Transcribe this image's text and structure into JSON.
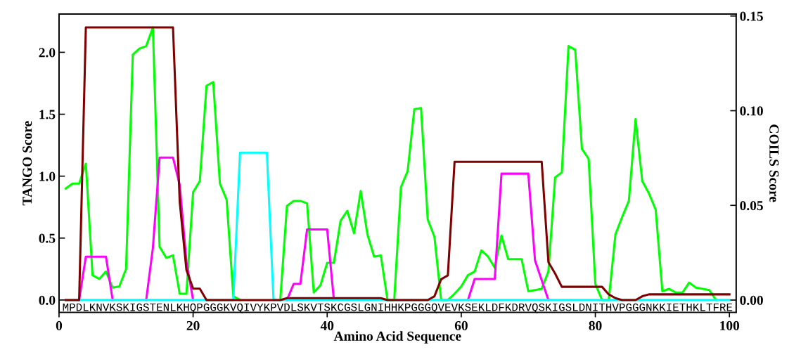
{
  "chart_data": {
    "type": "line",
    "xlabel": "Amino Acid Sequence",
    "ylabel": "TANGO Score",
    "y2label": "COILS Score",
    "annotations": [
      "MPDLKNVKSKIGSTENLKHQPGGGKVQIVYKPVDLSKVTSKCGSLGNIHHKPGGGQVEVKSEKLDFKDRVQSKIGSLDNITHVPGGGNKKIETHKLTFRE"
    ],
    "x": [
      1,
      2,
      3,
      4,
      5,
      6,
      7,
      8,
      9,
      10,
      11,
      12,
      13,
      14,
      15,
      16,
      17,
      18,
      19,
      20,
      21,
      22,
      23,
      24,
      25,
      26,
      27,
      28,
      29,
      30,
      31,
      32,
      33,
      34,
      35,
      36,
      37,
      38,
      39,
      40,
      41,
      42,
      43,
      44,
      45,
      46,
      47,
      48,
      49,
      50,
      51,
      52,
      53,
      54,
      55,
      56,
      57,
      58,
      59,
      60,
      61,
      62,
      63,
      64,
      65,
      66,
      67,
      68,
      69,
      70,
      71,
      72,
      73,
      74,
      75,
      76,
      77,
      78,
      79,
      80,
      81,
      82,
      83,
      84,
      85,
      86,
      87,
      88,
      89,
      90,
      91,
      92,
      93,
      94,
      95,
      96,
      97,
      98,
      99,
      100
    ],
    "series": [
      {
        "color": "#00ff00",
        "values": [
          0.9,
          0.94,
          0.94,
          1.1,
          0.2,
          0.17,
          0.23,
          0.1,
          0.11,
          0.25,
          1.98,
          2.03,
          2.05,
          2.2,
          0.43,
          0.34,
          0.36,
          0.05,
          0.05,
          0.87,
          0.96,
          1.73,
          1.76,
          0.94,
          0.81,
          0.03,
          0,
          null,
          null,
          null,
          null,
          null,
          0,
          0.76,
          0.8,
          0.8,
          0.78,
          0.06,
          0.12,
          0.3,
          0.3,
          0.64,
          0.72,
          0.54,
          0.88,
          0.53,
          0.35,
          0.36,
          0,
          0,
          0.91,
          1.04,
          1.54,
          1.55,
          0.65,
          0.51,
          0,
          0,
          0.05,
          0.11,
          0.2,
          0.23,
          0.4,
          0.35,
          0.26,
          0.52,
          0.33,
          0.33,
          0.33,
          0.07,
          0.08,
          0.09,
          0.23,
          0.99,
          1.03,
          2.05,
          2.02,
          1.22,
          1.14,
          0.13,
          0,
          0,
          0.53,
          0.67,
          0.8,
          1.46,
          0.96,
          0.86,
          0.73,
          0.07,
          0.09,
          0.06,
          0.06,
          0.14,
          0.1,
          0.09,
          0.08,
          0,
          null,
          null
        ]
      },
      {
        "color": "#ff00ff",
        "values": [
          null,
          null,
          0,
          0.35,
          0.35,
          0.35,
          0.35,
          0,
          null,
          null,
          null,
          null,
          0,
          0.42,
          1.15,
          1.15,
          1.15,
          0.93,
          0.31,
          0,
          null,
          null,
          null,
          null,
          null,
          null,
          null,
          null,
          null,
          null,
          null,
          null,
          null,
          0,
          0.13,
          0.13,
          0.57,
          0.57,
          0.57,
          0.57,
          0,
          null,
          null,
          null,
          null,
          null,
          null,
          null,
          null,
          null,
          null,
          null,
          null,
          null,
          null,
          null,
          null,
          null,
          null,
          null,
          0,
          0.17,
          0.17,
          0.17,
          0.17,
          1.02,
          1.02,
          1.02,
          1.02,
          1.02,
          0.32,
          0.16,
          0,
          null,
          null,
          null,
          null,
          null,
          null,
          null,
          null,
          null,
          null,
          null,
          null,
          null,
          null,
          null,
          null,
          null,
          null,
          null,
          null,
          null,
          null,
          null,
          null,
          null,
          null,
          null
        ]
      },
      {
        "color": "#00ffff",
        "values": [
          0,
          0,
          0,
          0,
          0,
          0,
          0,
          0,
          0,
          0,
          0,
          0,
          0,
          0,
          0,
          0,
          0,
          0,
          0,
          0,
          0,
          0,
          0,
          0,
          0,
          0,
          1.19,
          1.19,
          1.19,
          1.19,
          1.19,
          0,
          0,
          0,
          0,
          0,
          0,
          0,
          0,
          0,
          0,
          0,
          0,
          0,
          0,
          0,
          0,
          0,
          0,
          0,
          0,
          0,
          0,
          0,
          0,
          0,
          0,
          0,
          0,
          0,
          0,
          0,
          0,
          0,
          0,
          0,
          0,
          0,
          0,
          0,
          0,
          0,
          0,
          0,
          0,
          0,
          0,
          0,
          0,
          0,
          0,
          0,
          0,
          0,
          0,
          0,
          0,
          0,
          0,
          0,
          0,
          0,
          0,
          0,
          0,
          0,
          0,
          0,
          0,
          0
        ]
      },
      {
        "color": "#800000",
        "axis": "y2",
        "values": [
          0,
          0,
          0,
          0.144,
          0.144,
          0.144,
          0.144,
          0.144,
          0.144,
          0.144,
          0.144,
          0.144,
          0.144,
          0.144,
          0.144,
          0.144,
          0.144,
          0.052,
          0.016,
          0.006,
          0.006,
          0,
          0,
          0,
          0,
          0,
          0,
          0,
          0,
          0,
          0,
          0,
          0,
          0.001,
          0.001,
          0.001,
          0.001,
          0.001,
          0.001,
          0.001,
          0.001,
          0.001,
          0.001,
          0.001,
          0.001,
          0.001,
          0.001,
          0.001,
          0,
          0,
          0,
          0,
          0,
          0,
          0,
          0.002,
          0.011,
          0.013,
          0.073,
          0.073,
          0.073,
          0.073,
          0.073,
          0.073,
          0.073,
          0.073,
          0.073,
          0.073,
          0.073,
          0.073,
          0.073,
          0.073,
          0.02,
          0.014,
          0.007,
          0.007,
          0.007,
          0.007,
          0.007,
          0.007,
          0.007,
          0.003,
          0.001,
          0,
          0,
          0,
          0.002,
          0.003,
          0.003,
          0.003,
          0.003,
          0.003,
          0.003,
          0.003,
          0.003,
          0.003,
          0.003,
          0.003,
          0.003,
          0.003
        ]
      }
    ],
    "xlim": [
      0,
      101
    ],
    "xticks": [
      0,
      20,
      40,
      60,
      80,
      100
    ],
    "ylim": [
      -0.1,
      2.31
    ],
    "yticks": [
      {
        "value": 0,
        "label": "0.0"
      },
      {
        "value": 0.5,
        "label": "0.5"
      },
      {
        "value": 1,
        "label": "1.0"
      },
      {
        "value": 1.5,
        "label": "1.5"
      },
      {
        "value": 2,
        "label": "2.0"
      }
    ],
    "y2lim": [
      -0.0065,
      0.1511
    ],
    "y2ticks": [
      {
        "value": 0,
        "label": "0.00"
      },
      {
        "value": 0.05,
        "label": "0.05"
      },
      {
        "value": 0.1,
        "label": "0.10"
      },
      {
        "value": 0.15,
        "label": "0.15"
      }
    ],
    "grid": false,
    "legend": false,
    "marker": "none",
    "line_style": "solid"
  }
}
